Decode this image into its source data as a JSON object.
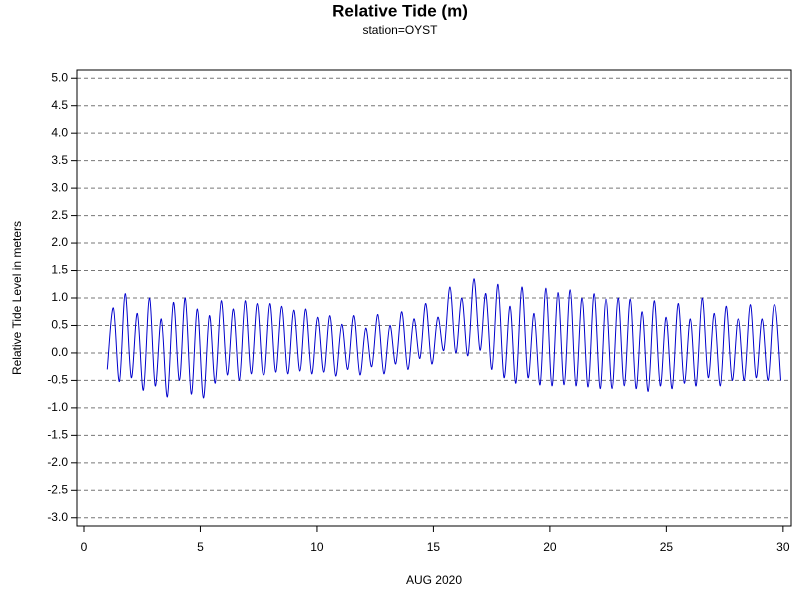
{
  "chart_data": {
    "type": "line",
    "title": "Relative Tide (m)",
    "subtitle": "station=OYST",
    "xlabel": "AUG 2020",
    "ylabel": "Relative Tide Level in meters",
    "grid": true,
    "xlim": [
      -0.3,
      30.35
    ],
    "xticks": [
      0,
      5,
      10,
      15,
      20,
      25,
      30
    ],
    "ylim": [
      -3.15,
      5.15
    ],
    "yticks": [
      {
        "value": -3,
        "label": "-3.0"
      },
      {
        "value": -2.5,
        "label": "-2.5"
      },
      {
        "value": -2,
        "label": "-2.0"
      },
      {
        "value": -1.5,
        "label": "-1.5"
      },
      {
        "value": -1,
        "label": "-1.0"
      },
      {
        "value": -0.5,
        "label": "-0.5"
      },
      {
        "value": 0,
        "label": "0.0"
      },
      {
        "value": 0.5,
        "label": "0.5"
      },
      {
        "value": 1,
        "label": "1.0"
      },
      {
        "value": 1.5,
        "label": "1.5"
      },
      {
        "value": 2,
        "label": "2.0"
      },
      {
        "value": 2.5,
        "label": "2.5"
      },
      {
        "value": 3,
        "label": "3.0"
      },
      {
        "value": 3.5,
        "label": "3.5"
      },
      {
        "value": 4,
        "label": "4.0"
      },
      {
        "value": 4.5,
        "label": "4.5"
      },
      {
        "value": 5,
        "label": "5.0"
      }
    ],
    "x": [
      1.0,
      1.26,
      1.52,
      1.77,
      2.03,
      2.29,
      2.55,
      2.81,
      3.06,
      3.32,
      3.58,
      3.84,
      4.1,
      4.35,
      4.61,
      4.87,
      5.13,
      5.39,
      5.64,
      5.9,
      6.16,
      6.42,
      6.68,
      6.93,
      7.19,
      7.45,
      7.71,
      7.97,
      8.22,
      8.48,
      8.74,
      9.0,
      9.26,
      9.51,
      9.77,
      10.03,
      10.29,
      10.55,
      10.8,
      11.06,
      11.32,
      11.58,
      11.84,
      12.09,
      12.35,
      12.61,
      12.87,
      13.13,
      13.38,
      13.64,
      13.9,
      14.16,
      14.42,
      14.67,
      14.93,
      15.19,
      15.45,
      15.71,
      15.96,
      16.22,
      16.48,
      16.74,
      17.0,
      17.25,
      17.51,
      17.77,
      18.03,
      18.29,
      18.54,
      18.8,
      19.06,
      19.32,
      19.58,
      19.83,
      20.09,
      20.35,
      20.61,
      20.87,
      21.12,
      21.38,
      21.64,
      21.9,
      22.16,
      22.41,
      22.67,
      22.93,
      23.19,
      23.45,
      23.7,
      23.96,
      24.22,
      24.48,
      24.74,
      24.99,
      25.25,
      25.51,
      25.77,
      26.03,
      26.28,
      26.54,
      26.8,
      27.06,
      27.32,
      27.57,
      27.83,
      28.09,
      28.35,
      28.61,
      28.86,
      29.12,
      29.38,
      29.64,
      29.9
    ],
    "series": [
      {
        "color": "#0000cc",
        "values": [
          -0.3,
          0.82,
          -0.52,
          1.08,
          -0.45,
          0.72,
          -0.68,
          1.0,
          -0.6,
          0.62,
          -0.8,
          0.92,
          -0.5,
          1.0,
          -0.75,
          0.8,
          -0.82,
          0.68,
          -0.55,
          0.95,
          -0.4,
          0.8,
          -0.5,
          0.95,
          -0.38,
          0.9,
          -0.4,
          0.9,
          -0.35,
          0.85,
          -0.38,
          0.78,
          -0.33,
          0.8,
          -0.38,
          0.65,
          -0.35,
          0.68,
          -0.42,
          0.52,
          -0.3,
          0.68,
          -0.4,
          0.45,
          -0.25,
          0.7,
          -0.38,
          0.5,
          -0.2,
          0.75,
          -0.3,
          0.62,
          -0.1,
          0.9,
          -0.2,
          0.65,
          0.05,
          1.2,
          0.0,
          1.0,
          -0.05,
          1.35,
          0.05,
          1.08,
          -0.3,
          1.25,
          -0.45,
          0.85,
          -0.55,
          1.2,
          -0.45,
          0.72,
          -0.58,
          1.18,
          -0.6,
          1.1,
          -0.58,
          1.15,
          -0.6,
          1.0,
          -0.62,
          1.08,
          -0.65,
          0.98,
          -0.65,
          1.0,
          -0.6,
          0.98,
          -0.65,
          0.75,
          -0.7,
          0.95,
          -0.6,
          0.65,
          -0.65,
          0.9,
          -0.55,
          0.62,
          -0.6,
          1.0,
          -0.45,
          0.72,
          -0.6,
          0.85,
          -0.5,
          0.62,
          -0.5,
          0.88,
          -0.45,
          0.62,
          -0.5,
          0.88,
          -0.5
        ]
      }
    ]
  }
}
